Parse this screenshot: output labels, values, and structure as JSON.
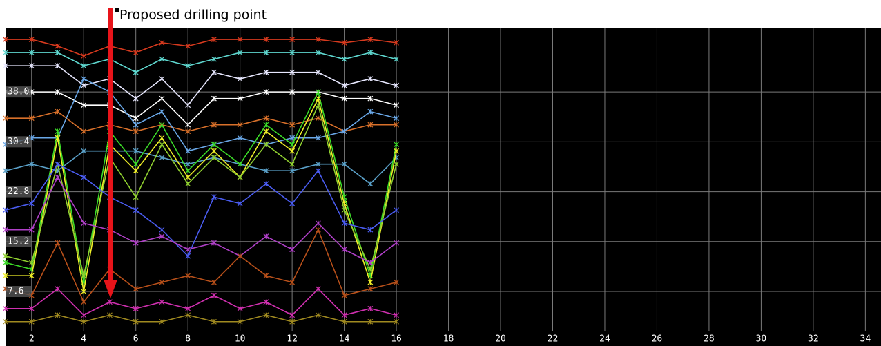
{
  "chart_data": {
    "type": "line",
    "annotation": "Proposed drilling point",
    "x": [
      1,
      2,
      3,
      4,
      5,
      6,
      7,
      8,
      9,
      10,
      11,
      12,
      13,
      14,
      15,
      16
    ],
    "xlim": [
      1,
      34.6
    ],
    "xticks": [
      2,
      4,
      6,
      8,
      10,
      12,
      14,
      16,
      18,
      20,
      22,
      24,
      26,
      28,
      30,
      32,
      34
    ],
    "ylim": [
      1.5,
      47.8
    ],
    "yticks": [
      7.6,
      15.2,
      22.8,
      30.4,
      38.0
    ],
    "grid": true,
    "series": [
      {
        "color": "#d83a1e",
        "values": [
          46,
          46,
          45,
          43.5,
          45,
          44,
          45.5,
          45,
          46,
          46,
          46,
          46,
          46,
          45.5,
          46,
          45.5
        ]
      },
      {
        "color": "#5fd8d0",
        "values": [
          44,
          44,
          44,
          42,
          43,
          41,
          43,
          42,
          43,
          44,
          44,
          44,
          44,
          43,
          44,
          43
        ]
      },
      {
        "color": "#e8e8ff",
        "values": [
          42,
          42,
          42,
          39,
          40,
          37,
          40,
          36,
          41,
          40,
          41,
          41,
          41,
          39,
          40,
          39
        ]
      },
      {
        "color": "#ffffff",
        "values": [
          38,
          38,
          38,
          36,
          36,
          34,
          37,
          33,
          37,
          37,
          38,
          38,
          38,
          37,
          37,
          36
        ]
      },
      {
        "color": "#d8702a",
        "values": [
          34,
          34,
          35,
          32,
          33,
          32,
          33,
          32,
          33,
          33,
          34,
          33,
          34,
          32,
          33,
          33
        ]
      },
      {
        "color": "#6aa8e8",
        "values": [
          30,
          31,
          31,
          40,
          38,
          33,
          35,
          29,
          30,
          31,
          30,
          31,
          31,
          32,
          35,
          34
        ]
      },
      {
        "color": "#5aa0c8",
        "values": [
          26,
          27,
          26,
          29,
          29,
          29,
          28,
          27,
          28,
          27,
          26,
          26,
          27,
          27,
          24,
          28
        ]
      },
      {
        "color": "#3cdc28",
        "values": [
          12,
          11,
          32,
          9,
          32,
          27,
          33,
          26,
          30,
          27,
          33,
          30,
          38,
          22,
          10,
          30
        ]
      },
      {
        "color": "#f0f028",
        "values": [
          10,
          10,
          31,
          7.6,
          30,
          26,
          31,
          25,
          29,
          25,
          32,
          29,
          37,
          21,
          9,
          29
        ]
      },
      {
        "color": "#90d030",
        "values": [
          13,
          12,
          27,
          10,
          28,
          22,
          30,
          24,
          28,
          25,
          30,
          27,
          36,
          20,
          11,
          27
        ]
      },
      {
        "color": "#4a5cf0",
        "values": [
          20,
          21,
          27,
          25,
          22,
          20,
          17,
          13,
          22,
          21,
          24,
          21,
          26,
          18,
          17,
          20
        ]
      },
      {
        "color": "#b040c8",
        "values": [
          17,
          17,
          25,
          18,
          17,
          15,
          16,
          14,
          15,
          13,
          16,
          14,
          18,
          14,
          12,
          15
        ]
      },
      {
        "color": "#b8501a",
        "values": [
          8,
          7,
          15,
          6,
          11,
          8,
          9,
          10,
          9,
          13,
          10,
          9,
          17,
          7,
          8,
          9
        ]
      },
      {
        "color": "#d030b0",
        "values": [
          5,
          5,
          8,
          4,
          6,
          5,
          6,
          5,
          7,
          5,
          6,
          4,
          8,
          4,
          5,
          4
        ]
      },
      {
        "color": "#a08a20",
        "values": [
          3,
          3,
          4,
          3,
          4,
          3,
          3,
          4,
          3,
          3,
          4,
          3,
          4,
          3,
          3,
          3
        ]
      }
    ]
  }
}
